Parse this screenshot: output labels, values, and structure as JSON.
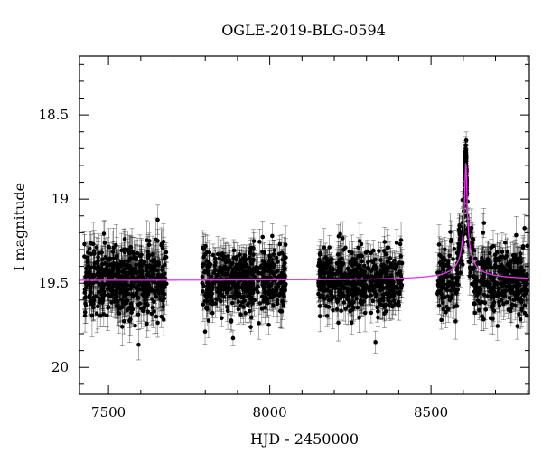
{
  "chart_data": {
    "type": "scatter",
    "title": "OGLE-2019-BLG-0594",
    "xlabel": "HJD - 2450000",
    "ylabel": "I magnitude",
    "xlim": [
      7410,
      8805
    ],
    "ylim": [
      20.16,
      18.15
    ],
    "y_inverted": true,
    "x_ticks": [
      7500,
      8000,
      8500
    ],
    "x_tick_labels": [
      "7500",
      "8000",
      "8500"
    ],
    "y_ticks": [
      18.5,
      19,
      19.5,
      20
    ],
    "y_tick_labels": [
      "18.5",
      "19",
      "19.5",
      "20"
    ],
    "grid": false,
    "legend": "none",
    "baseline_mag": 19.485,
    "seasons": [
      {
        "x_start": 7425,
        "x_end": 7680,
        "mean_mag": 19.48,
        "scatter": 0.11,
        "err": 0.09
      },
      {
        "x_start": 7790,
        "x_end": 8050,
        "mean_mag": 19.48,
        "scatter": 0.09,
        "err": 0.075
      },
      {
        "x_start": 8150,
        "x_end": 8410,
        "mean_mag": 19.48,
        "scatter": 0.09,
        "err": 0.075
      },
      {
        "x_start": 8520,
        "x_end": 8800,
        "mean_mag": 19.48,
        "scatter": 0.1,
        "err": 0.08
      }
    ],
    "event": {
      "t0": 8608,
      "peak_mag": 18.78,
      "duration": 6,
      "observed_min_mag": 18.62
    },
    "colors": {
      "points": "#000000",
      "model": "#ee33ee"
    }
  }
}
